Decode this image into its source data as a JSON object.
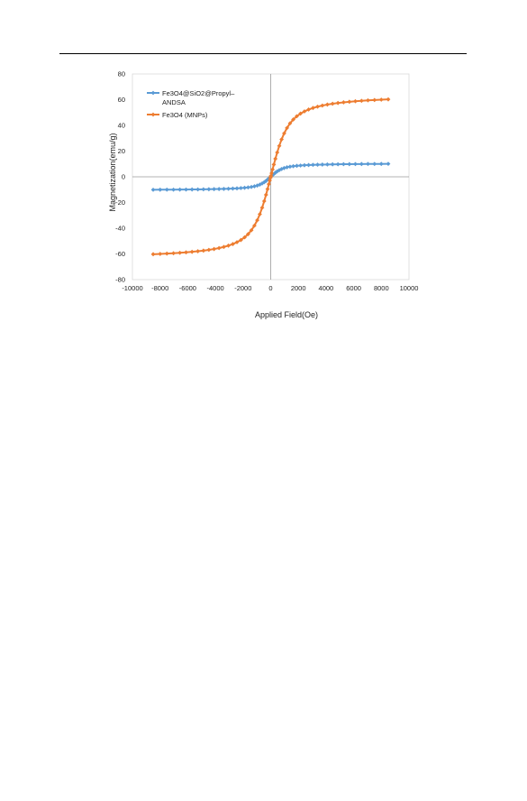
{
  "chart_data": {
    "type": "scatter",
    "title": "",
    "xlabel": "Applied Field(Oe)",
    "ylabel": "Magnetization(emu/g)",
    "xlim": [
      -10000,
      10000
    ],
    "ylim": [
      -80,
      80
    ],
    "x_ticks": [
      -10000,
      -8000,
      -6000,
      -4000,
      -2000,
      0,
      2000,
      4000,
      6000,
      8000,
      10000
    ],
    "y_ticks": [
      -80,
      -60,
      -40,
      -20,
      0,
      20,
      40,
      60,
      80
    ],
    "x_tick_labels": [
      "-10000",
      "-8000",
      "-6000",
      "-4000",
      "-2000",
      "0",
      "2000",
      "4000",
      "6000",
      "8000",
      "10000"
    ],
    "y_tick_labels": [
      "-80",
      "-60",
      "-40",
      "-20",
      "0",
      "20",
      "40",
      "60",
      "80"
    ],
    "grid": false,
    "legend_position": "top-left",
    "series": [
      {
        "name": "Fe3O4@SiO2@Propyl–ANDSA",
        "legend_lines": [
          "Fe3O4@SiO2@Propyl–",
          "ANDSA"
        ],
        "color": "#5b9bd5",
        "model": "langevin",
        "ms": 10.5,
        "h0": 350,
        "x_range": [
          -8500,
          8500
        ],
        "points": 61
      },
      {
        "name": "Fe3O4 (MNPs)",
        "legend_lines": [
          "Fe3O4 (MNPs)"
        ],
        "color": "#ed7d31",
        "model": "langevin",
        "ms": 64,
        "h0": 500,
        "x_range": [
          -8500,
          8500
        ],
        "points": 61
      }
    ]
  }
}
